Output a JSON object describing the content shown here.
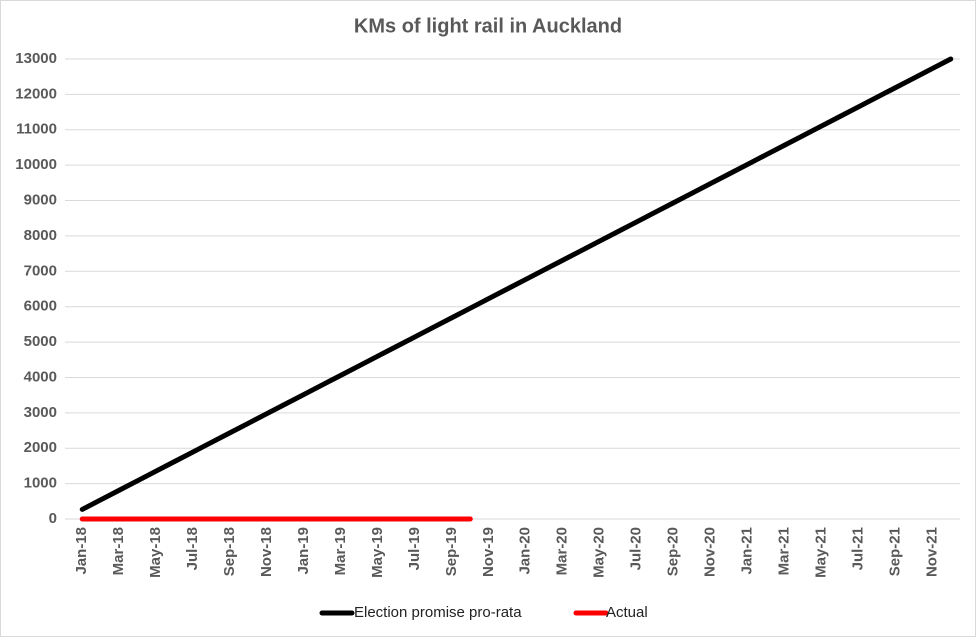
{
  "chart_data": {
    "type": "line",
    "title": "KMs of light rail in Auckland",
    "categories": [
      "Jan-18",
      null,
      "Mar-18",
      null,
      "May-18",
      null,
      "Jul-18",
      null,
      "Sep-18",
      null,
      "Nov-18",
      null,
      "Jan-19",
      null,
      "Mar-19",
      null,
      "May-19",
      null,
      "Jul-19",
      null,
      "Sep-19",
      null,
      "Nov-19",
      null,
      "Jan-20",
      null,
      "Mar-20",
      null,
      "May-20",
      null,
      "Jul-20",
      null,
      "Sep-20",
      null,
      "Nov-20",
      null,
      "Jan-21",
      null,
      "Mar-21",
      null,
      "May-21",
      null,
      "Jul-21",
      null,
      "Sep-21",
      null,
      "Nov-21",
      null
    ],
    "series": [
      {
        "name": "Election promise pro-rata",
        "color": "#000000",
        "values": [
          271,
          542,
          813,
          1083,
          1354,
          1625,
          1896,
          2167,
          2438,
          2708,
          2979,
          3250,
          3521,
          3792,
          4063,
          4333,
          4604,
          4875,
          5146,
          5417,
          5688,
          5958,
          6229,
          6500,
          6771,
          7042,
          7313,
          7583,
          7854,
          8125,
          8396,
          8667,
          8938,
          9208,
          9479,
          9750,
          10021,
          10292,
          10563,
          10833,
          11104,
          11375,
          11646,
          11917,
          12188,
          12458,
          12729,
          13000
        ]
      },
      {
        "name": "Actual",
        "color": "#ff0000",
        "values": [
          0,
          0,
          0,
          0,
          0,
          0,
          0,
          0,
          0,
          0,
          0,
          0,
          0,
          0,
          0,
          0,
          0,
          0,
          0,
          0,
          0,
          0,
          null,
          null,
          null,
          null,
          null,
          null,
          null,
          null,
          null,
          null,
          null,
          null,
          null,
          null,
          null,
          null,
          null,
          null,
          null,
          null,
          null,
          null,
          null,
          null,
          null,
          null
        ]
      }
    ],
    "ylim": [
      0,
      13000
    ],
    "yticks": [
      0,
      1000,
      2000,
      3000,
      4000,
      5000,
      6000,
      7000,
      8000,
      9000,
      10000,
      11000,
      12000,
      13000
    ],
    "grid": true,
    "legend": "bottom"
  }
}
